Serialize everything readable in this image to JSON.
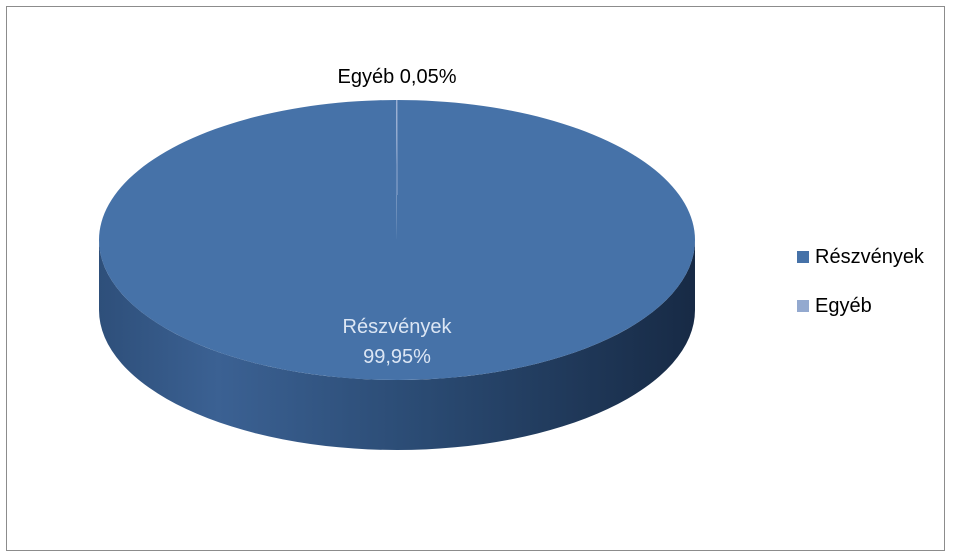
{
  "chart_data": {
    "type": "pie",
    "style": "3d",
    "title": "",
    "slices": [
      {
        "name": "Részvények",
        "value": 99.95,
        "color": "#4672A8"
      },
      {
        "name": "Egyéb",
        "value": 0.05,
        "color": "#93A9CF"
      }
    ],
    "data_labels": {
      "main_name": "Részvények",
      "main_value": "99,95%",
      "small": "Egyéb 0,05%"
    },
    "legend": {
      "placement": "right",
      "items": [
        {
          "label": "Részvények",
          "color": "#4672A8"
        },
        {
          "label": "Egyéb",
          "color": "#93A9CF"
        }
      ]
    }
  }
}
